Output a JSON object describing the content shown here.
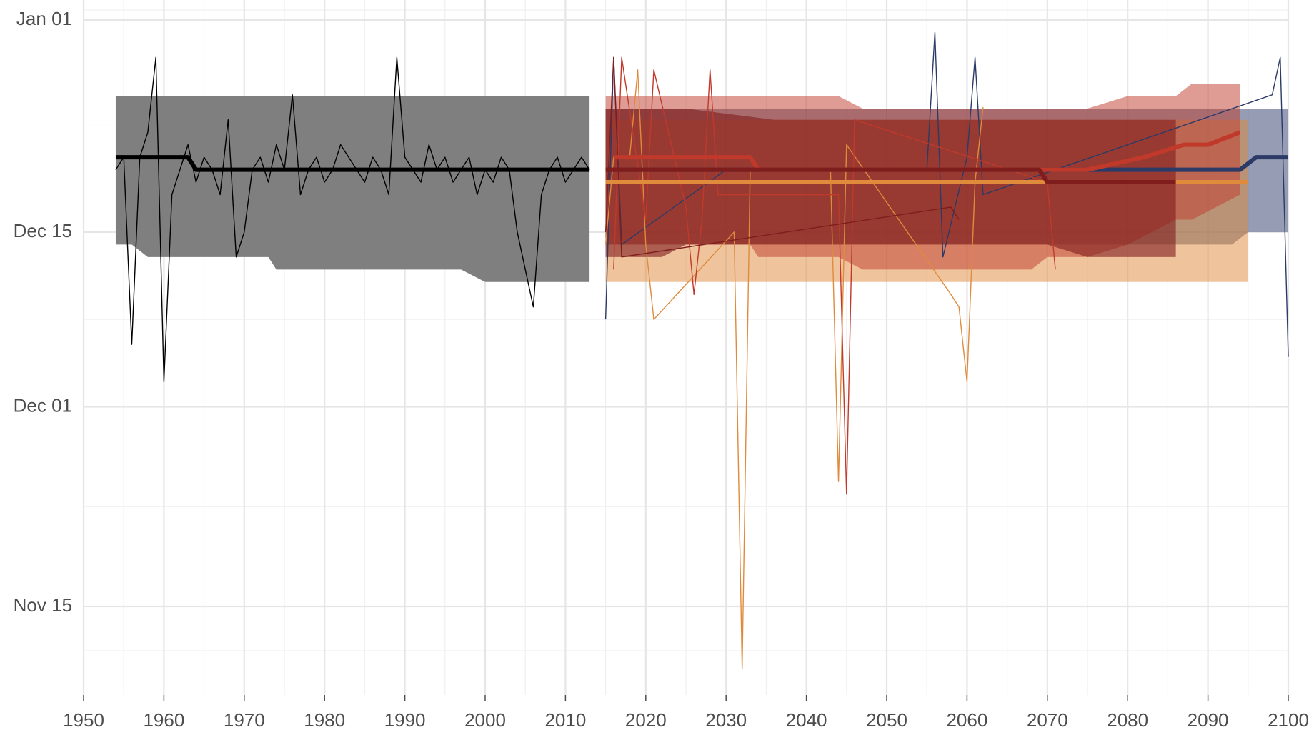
{
  "chart_data": {
    "type": "line",
    "xlim": [
      1950,
      2100
    ],
    "xticks": [
      1950,
      1960,
      1970,
      1980,
      1990,
      2000,
      2010,
      2020,
      2030,
      2040,
      2050,
      2060,
      2070,
      2080,
      2090,
      2100
    ],
    "ylim": [
      -7.1,
      48.6
    ],
    "yticks": [
      {
        "value": 0,
        "label": "Nov 15"
      },
      {
        "value": 16,
        "label": "Dec 01"
      },
      {
        "value": 30,
        "label": "Dec 15"
      },
      {
        "value": 47,
        "label": "Jan 01"
      }
    ],
    "grid": true,
    "bands": [
      {
        "color": "#7f7f7f",
        "opacity": 1,
        "x": [
          1954,
          1956,
          1958,
          1973,
          1974,
          1997,
          2000,
          2013
        ],
        "lower": [
          29,
          29,
          28,
          28,
          27,
          27,
          26,
          26
        ],
        "upper": [
          40.9,
          40.9,
          40.9,
          40.9,
          40.9,
          40.9,
          40.9,
          40.9
        ]
      },
      {
        "color": "#2b3a67",
        "opacity": 0.5,
        "x": [
          2015,
          2093,
          2095,
          2100
        ],
        "lower": [
          29,
          29,
          30,
          30
        ],
        "upper": [
          39.9,
          39.9,
          39.9,
          39.9
        ]
      },
      {
        "color": "#e08a3c",
        "opacity": 0.5,
        "x": [
          2015,
          2095
        ],
        "lower": [
          26,
          26
        ],
        "upper": [
          39,
          39
        ]
      },
      {
        "color": "#c0392b",
        "opacity": 0.5,
        "x": [
          2015,
          2033,
          2034,
          2044,
          2047,
          2068,
          2070,
          2075,
          2080,
          2086,
          2088,
          2094
        ],
        "lower": [
          29,
          29,
          28,
          28,
          27,
          27,
          28,
          28,
          29,
          31,
          31,
          33
        ],
        "upper": [
          40.9,
          40.9,
          40.9,
          40.9,
          39.9,
          39.9,
          39.9,
          39.9,
          40.9,
          40.9,
          41.9,
          41.9
        ]
      },
      {
        "color": "#7f1d1d",
        "opacity": 0.6,
        "x": [
          2015,
          2022,
          2025,
          2036,
          2070,
          2075,
          2086
        ],
        "lower": [
          28,
          28,
          29,
          29,
          29,
          28,
          28
        ],
        "upper": [
          39.9,
          39.9,
          39.9,
          39,
          39,
          39,
          39
        ]
      }
    ],
    "annual": [
      {
        "color": "#000000",
        "x": [
          1954,
          1955,
          1956,
          1957,
          1958,
          1959,
          1960,
          1961,
          1962,
          1963,
          1964,
          1965,
          1966,
          1967,
          1968,
          1969,
          1970,
          1971,
          1972,
          1973,
          1974,
          1975,
          1976,
          1977,
          1978,
          1979,
          1980,
          1981,
          1982,
          1983,
          1984,
          1985,
          1986,
          1987,
          1988,
          1989,
          1990,
          1991,
          1992,
          1993,
          1994,
          1995,
          1996,
          1997,
          1998,
          1999,
          2000,
          2001,
          2002,
          2003,
          2004,
          2005,
          2006,
          2007,
          2008,
          2009,
          2010,
          2011,
          2012,
          2013
        ],
        "values": [
          35,
          36,
          21,
          36,
          38,
          44,
          18,
          33,
          35,
          37,
          34,
          36,
          35,
          33,
          39,
          28,
          30,
          35,
          36,
          34,
          37,
          35,
          41,
          33,
          35,
          36,
          34,
          35,
          37,
          36,
          35,
          34,
          36,
          35,
          33,
          44,
          36,
          35,
          34,
          37,
          35,
          36,
          34,
          35,
          36,
          33,
          35,
          34,
          36,
          35,
          30,
          27,
          24,
          33,
          35,
          36,
          34,
          35,
          36,
          35
        ]
      },
      {
        "color": "#2b3a67",
        "x": [
          2015,
          2016,
          2017,
          2030,
          2055,
          2056,
          2057,
          2060,
          2061,
          2062,
          2098,
          2099,
          2100
        ],
        "values": [
          23,
          44,
          29,
          35,
          35,
          46,
          28,
          36,
          44,
          33,
          41,
          44,
          20
        ]
      },
      {
        "color": "#e08a3c",
        "x": [
          2015,
          2016,
          2018,
          2019,
          2020,
          2021,
          2031,
          2032,
          2033,
          2043,
          2044,
          2045,
          2058,
          2059,
          2060,
          2061,
          2062
        ],
        "values": [
          29,
          36,
          36,
          43,
          29,
          23,
          30,
          -5,
          35,
          35,
          10,
          37,
          25,
          24,
          18,
          34,
          40
        ]
      },
      {
        "color": "#c0392b",
        "x": [
          2016,
          2017,
          2020,
          2021,
          2025,
          2026,
          2027,
          2028,
          2029,
          2044,
          2045,
          2046,
          2070,
          2071
        ],
        "values": [
          27,
          44,
          31,
          43,
          32,
          25,
          31,
          43,
          33,
          33,
          9,
          39,
          34,
          27
        ]
      },
      {
        "color": "#7f1d1d",
        "x": [
          2015,
          2016,
          2017,
          2058,
          2059
        ],
        "values": [
          30,
          44,
          28,
          32,
          31
        ]
      }
    ],
    "series": [
      {
        "color": "#000000",
        "x": [
          1954,
          1963,
          1964,
          2013
        ],
        "values": [
          36,
          36,
          35,
          35
        ]
      },
      {
        "color": "#2b3a67",
        "x": [
          2015,
          2094,
          2096,
          2100
        ],
        "values": [
          35,
          35,
          36,
          36
        ]
      },
      {
        "color": "#e08a3c",
        "x": [
          2015,
          2095
        ],
        "values": [
          34,
          34
        ]
      },
      {
        "color": "#c0392b",
        "x": [
          2016,
          2033,
          2034,
          2075,
          2082,
          2087,
          2090,
          2094
        ],
        "values": [
          36,
          36,
          35,
          35,
          36,
          37,
          37,
          38
        ]
      },
      {
        "color": "#7f1d1d",
        "x": [
          2015,
          2069,
          2070,
          2086
        ],
        "values": [
          35,
          35,
          34,
          34
        ]
      }
    ]
  }
}
